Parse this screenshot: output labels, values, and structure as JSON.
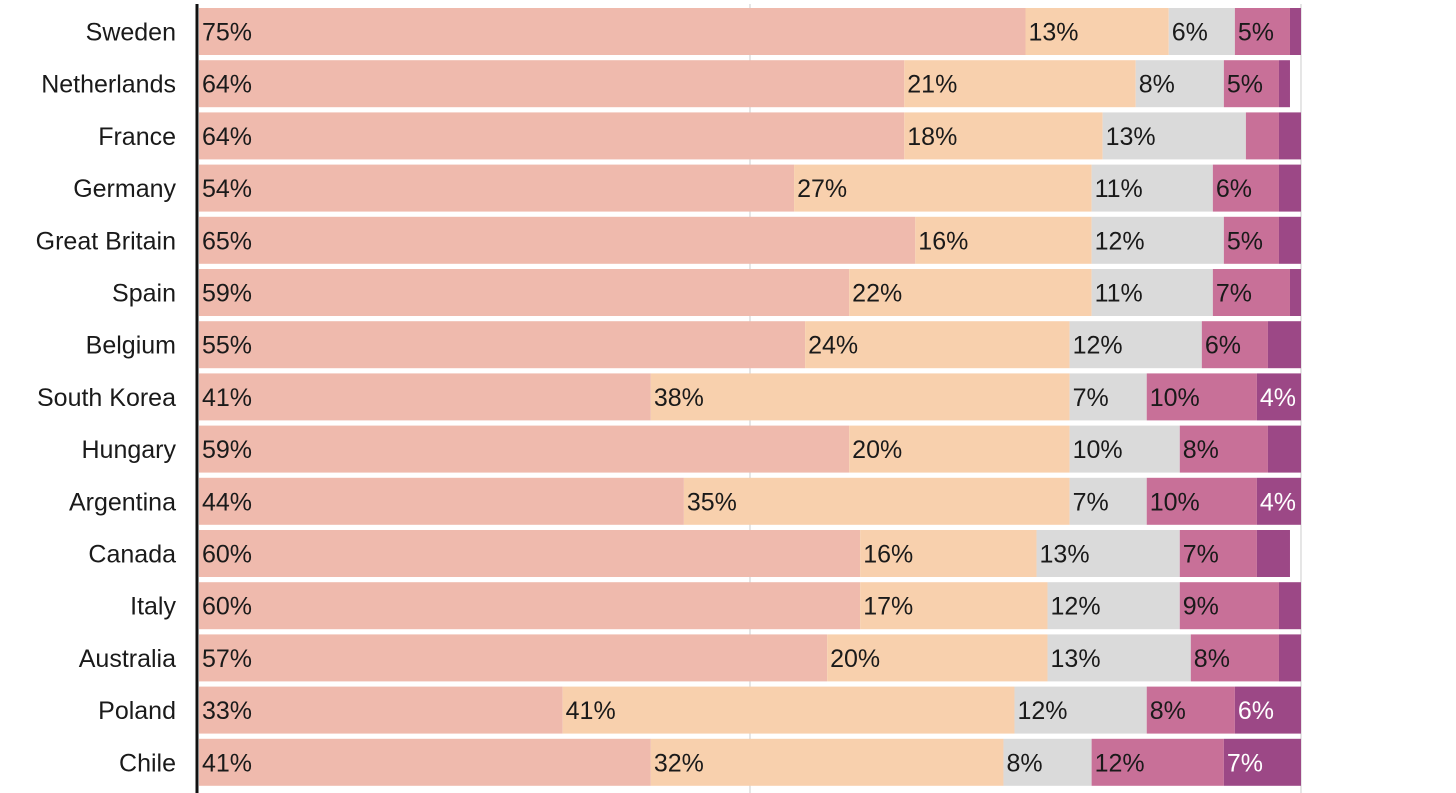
{
  "chart_data": {
    "type": "bar",
    "orientation": "horizontal",
    "stacked": true,
    "title": "",
    "xlabel": "",
    "ylabel": "",
    "xlim": [
      0,
      100
    ],
    "grid": true,
    "legend": "none",
    "categories": [
      "Sweden",
      "Netherlands",
      "France",
      "Germany",
      "Great Britain",
      "Spain",
      "Belgium",
      "South Korea",
      "Hungary",
      "Argentina",
      "Canada",
      "Italy",
      "Australia",
      "Poland",
      "Chile"
    ],
    "series": [
      {
        "color": "#efbaad",
        "label_color": "#1a1a1a",
        "values": [
          75,
          64,
          64,
          54,
          65,
          59,
          55,
          41,
          59,
          44,
          60,
          60,
          57,
          33,
          41
        ],
        "labels": [
          "75%",
          "64%",
          "64%",
          "54%",
          "65%",
          "59%",
          "55%",
          "41%",
          "59%",
          "44%",
          "60%",
          "60%",
          "57%",
          "33%",
          "41%"
        ]
      },
      {
        "color": "#f8d0ad",
        "label_color": "#1a1a1a",
        "values": [
          13,
          21,
          18,
          27,
          16,
          22,
          24,
          38,
          20,
          35,
          16,
          17,
          20,
          41,
          32
        ],
        "labels": [
          "13%",
          "21%",
          "18%",
          "27%",
          "16%",
          "22%",
          "24%",
          "38%",
          "20%",
          "35%",
          "16%",
          "17%",
          "20%",
          "41%",
          "32%"
        ]
      },
      {
        "color": "#dadada",
        "label_color": "#1a1a1a",
        "values": [
          6,
          8,
          13,
          11,
          12,
          11,
          12,
          7,
          10,
          7,
          13,
          12,
          13,
          12,
          8
        ],
        "labels": [
          "6%",
          "8%",
          "13%",
          "11%",
          "12%",
          "11%",
          "12%",
          "7%",
          "10%",
          "7%",
          "13%",
          "12%",
          "13%",
          "12%",
          "8%"
        ]
      },
      {
        "color": "#c87098",
        "label_color": "#1a1a1a",
        "values": [
          5,
          5,
          3,
          6,
          5,
          7,
          6,
          10,
          8,
          10,
          7,
          9,
          8,
          8,
          12
        ],
        "labels": [
          "5%",
          "5%",
          "",
          "6%",
          "5%",
          "7%",
          "6%",
          "10%",
          "8%",
          "10%",
          "7%",
          "9%",
          "8%",
          "8%",
          "12%"
        ]
      },
      {
        "color": "#9c4886",
        "label_color": "#ffffff",
        "values": [
          1,
          1,
          2,
          2,
          2,
          1,
          3,
          4,
          3,
          4,
          3,
          2,
          3,
          6,
          7
        ],
        "labels": [
          "",
          "",
          "",
          "",
          "",
          "",
          "",
          "4%",
          "",
          "4%",
          "",
          "",
          "",
          "6%",
          "7%"
        ]
      }
    ]
  }
}
